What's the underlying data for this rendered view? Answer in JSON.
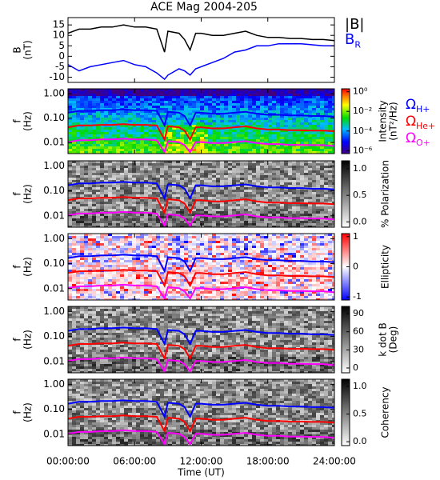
{
  "chart_data": [
    {
      "type": "line",
      "title": "ACE Mag 2004-205",
      "y_label": [
        "B",
        "(nT)"
      ],
      "x_label": "Time (UT)",
      "xlim": [
        0,
        24
      ],
      "xticks": [
        {
          "value": 0,
          "label": "00:00:00"
        },
        {
          "value": 6,
          "label": "06:00:00"
        },
        {
          "value": 12,
          "label": "12:00:00"
        },
        {
          "value": 18,
          "label": "18:00:00"
        },
        {
          "value": 24,
          "label": "24:00:00"
        }
      ],
      "ylim": [
        -12.5,
        18.5
      ],
      "yticks": [
        15,
        10,
        5,
        0,
        -5,
        -10
      ],
      "x": [
        0,
        1,
        2,
        3,
        4,
        5,
        6,
        7,
        8,
        8.7,
        9,
        10,
        10.5,
        11,
        11.5,
        12,
        13,
        14,
        15,
        16,
        17,
        18,
        19,
        20,
        21,
        22,
        23,
        24
      ],
      "series": [
        {
          "name": "|B|",
          "color": "#000000",
          "values": [
            11,
            13,
            13,
            14,
            14,
            15,
            14,
            14,
            13,
            2,
            12,
            11,
            8,
            3,
            11,
            11,
            10,
            10,
            11,
            12,
            10,
            9,
            9,
            8.5,
            8.5,
            8,
            8,
            7.5
          ]
        },
        {
          "name": "B",
          "name_sub": "R",
          "color": "#0000ff",
          "values": [
            -4,
            -7,
            -5,
            -4,
            -3,
            -2,
            -4,
            -5,
            -8,
            -11,
            -9,
            -6,
            -7,
            -9,
            -6,
            -5,
            -3,
            -1,
            2,
            3,
            5,
            5,
            6,
            6,
            6,
            5.5,
            5,
            5
          ]
        }
      ]
    },
    {
      "type": "spectrogram",
      "y_label": [
        "f",
        "(Hz)"
      ],
      "log_y": true,
      "ylim": [
        0.0035,
        1.6
      ],
      "yticks": [
        {
          "value": 1,
          "label": "1.00"
        },
        {
          "value": 0.1,
          "label": "0.10"
        },
        {
          "value": 0.01,
          "label": "0.01"
        }
      ],
      "colorbar": {
        "label": [
          "Intensity",
          "(nT²/Hz)"
        ],
        "colormap": "rainbow",
        "log": true,
        "zlim": [
          5e-07,
          2
        ],
        "ticks": [
          {
            "value": 1,
            "label": "10⁰"
          },
          {
            "value": 0.01,
            "label": "10⁻²"
          },
          {
            "value": 0.0001,
            "label": "10⁻⁴"
          },
          {
            "value": 1e-06,
            "label": "10⁻⁶"
          }
        ]
      },
      "series": [
        {
          "name": "Ω",
          "name_sub": "H+",
          "color": "#0000ff",
          "values": [
            0.167,
            0.198,
            0.198,
            0.213,
            0.213,
            0.228,
            0.213,
            0.213,
            0.198,
            0.05,
            0.182,
            0.167,
            0.122,
            0.05,
            0.167,
            0.167,
            0.152,
            0.152,
            0.167,
            0.182,
            0.152,
            0.137,
            0.137,
            0.129,
            0.129,
            0.122,
            0.122,
            0.114
          ]
        },
        {
          "name": "Ω",
          "name_sub": "He+",
          "color": "#ff0000",
          "values": [
            0.042,
            0.05,
            0.05,
            0.053,
            0.053,
            0.057,
            0.053,
            0.053,
            0.05,
            0.013,
            0.046,
            0.042,
            0.031,
            0.013,
            0.042,
            0.042,
            0.038,
            0.038,
            0.042,
            0.046,
            0.038,
            0.034,
            0.034,
            0.032,
            0.032,
            0.031,
            0.031,
            0.029
          ]
        },
        {
          "name": "Ω",
          "name_sub": "O+",
          "color": "#ff00ff",
          "values": [
            0.0104,
            0.0124,
            0.0124,
            0.0133,
            0.0133,
            0.0143,
            0.0133,
            0.0133,
            0.0124,
            0.004,
            0.0114,
            0.0104,
            0.0078,
            0.004,
            0.0104,
            0.0104,
            0.0095,
            0.0095,
            0.0104,
            0.0114,
            0.0095,
            0.0086,
            0.0086,
            0.008,
            0.008,
            0.0078,
            0.0078,
            0.0071
          ]
        }
      ]
    },
    {
      "type": "spectrogram",
      "y_label": [
        "f",
        "(Hz)"
      ],
      "log_y": true,
      "ylim": [
        0.0035,
        1.6
      ],
      "yticks": [
        {
          "value": 1,
          "label": "1.00"
        },
        {
          "value": 0.1,
          "label": "0.10"
        },
        {
          "value": 0.01,
          "label": "0.01"
        }
      ],
      "colorbar": {
        "label": [
          "% Polarization"
        ],
        "colormap": "gray_r",
        "zlim": [
          -0.1,
          1.15
        ],
        "ticks": [
          {
            "value": 1,
            "label": "1.0"
          },
          {
            "value": 0.5,
            "label": "0.5"
          },
          {
            "value": 0,
            "label": "0.0"
          }
        ]
      }
    },
    {
      "type": "spectrogram",
      "y_label": [
        "f",
        "(Hz)"
      ],
      "log_y": true,
      "ylim": [
        0.0035,
        1.6
      ],
      "yticks": [
        {
          "value": 1,
          "label": "1.00"
        },
        {
          "value": 0.1,
          "label": "0.10"
        },
        {
          "value": 0.01,
          "label": "0.01"
        }
      ],
      "colorbar": {
        "label": [
          "Ellipticity"
        ],
        "colormap": "bwr",
        "zlim": [
          -1.1,
          1.1
        ],
        "ticks": [
          1,
          0,
          -1
        ]
      }
    },
    {
      "type": "spectrogram",
      "y_label": [
        "f",
        "(Hz)"
      ],
      "log_y": true,
      "ylim": [
        0.0035,
        1.6
      ],
      "yticks": [
        {
          "value": 1,
          "label": "1.00"
        },
        {
          "value": 0.1,
          "label": "0.10"
        },
        {
          "value": 0.01,
          "label": "0.01"
        }
      ],
      "colorbar": {
        "label": [
          "k dot B",
          "(Deg)"
        ],
        "colormap": "gray_r",
        "zlim": [
          -8,
          102
        ],
        "ticks": [
          90,
          60,
          30,
          0
        ]
      }
    },
    {
      "type": "spectrogram",
      "y_label": [
        "f",
        "(Hz)"
      ],
      "log_y": true,
      "ylim": [
        0.0035,
        1.6
      ],
      "yticks": [
        {
          "value": 1,
          "label": "1.00"
        },
        {
          "value": 0.1,
          "label": "0.10"
        },
        {
          "value": 0.01,
          "label": "0.01"
        }
      ],
      "colorbar": {
        "label": [
          "Coherency"
        ],
        "colormap": "gray_r",
        "zlim": [
          -0.07,
          1.13
        ],
        "ticks": [
          {
            "value": 1,
            "label": "1.0"
          },
          {
            "value": 0.5,
            "label": "0.5"
          },
          {
            "value": 0,
            "label": "0.0"
          }
        ]
      }
    }
  ]
}
